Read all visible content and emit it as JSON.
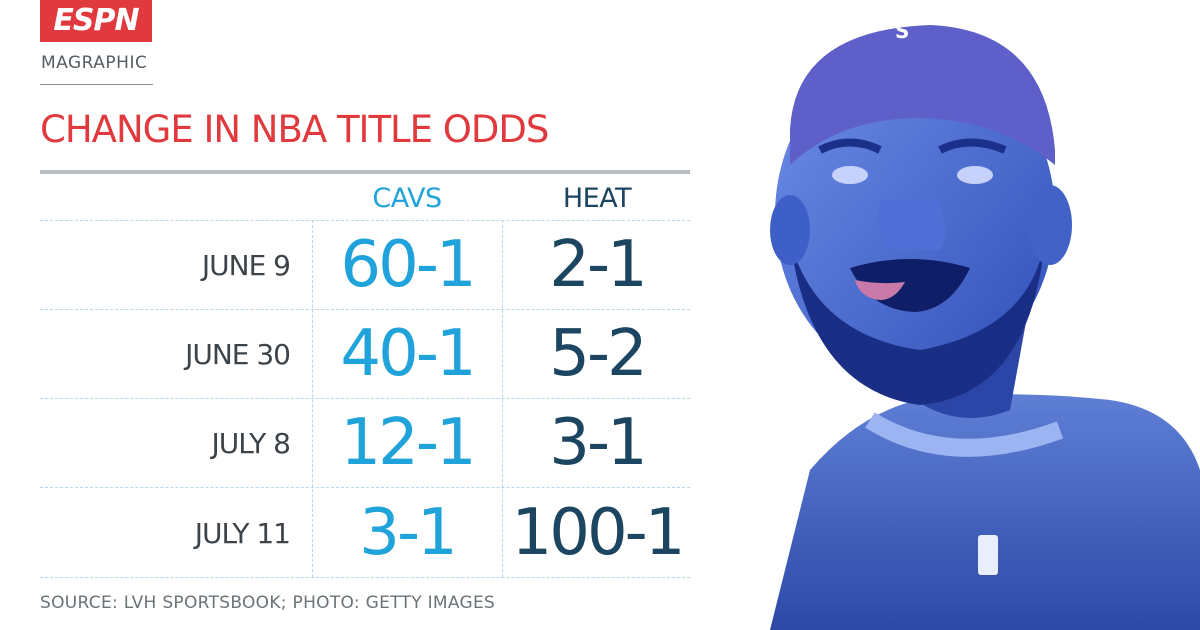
{
  "brand": {
    "logo_text": "ESPN",
    "kicker": "MAGRAPHIC"
  },
  "colors": {
    "brand_red": "#e03a3e",
    "cavs_blue": "#1fa3da",
    "heat_navy": "#1b4560"
  },
  "chart_data": {
    "type": "table",
    "title": "CHANGE IN NBA TITLE ODDS",
    "columns": [
      "CAVS",
      "HEAT"
    ],
    "rows": [
      {
        "date": "JUNE 9",
        "cavs": "60-1",
        "heat": "2-1"
      },
      {
        "date": "JUNE 30",
        "cavs": "40-1",
        "heat": "5-2"
      },
      {
        "date": "JULY 8",
        "cavs": "12-1",
        "heat": "3-1"
      },
      {
        "date": "JULY 11",
        "cavs": "3-1",
        "heat": "100-1"
      }
    ],
    "source": "SOURCE: LVH SPORTSBOOK; PHOTO: GETTY IMAGES"
  },
  "photo": {
    "icon": "basketball-player-photo"
  }
}
